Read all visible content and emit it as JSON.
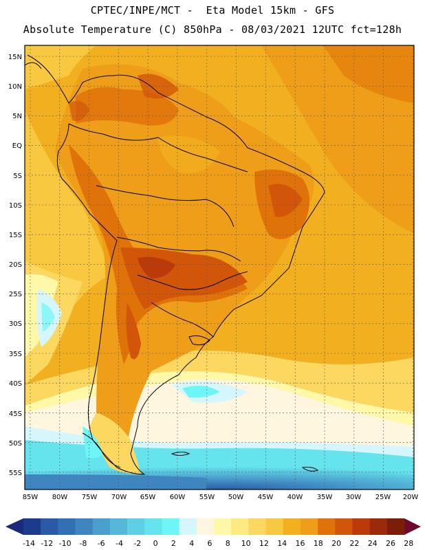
{
  "title_line1": "CPTEC/INPE/MCT -  Eta Model 15km - GFS",
  "title_line2": "Absolute Temperature (C) 850hPa - 08/03/2021 12UTC fct=128h",
  "lat_labels": [
    "15N",
    "10N",
    "5N",
    "EQ",
    "5S",
    "10S",
    "15S",
    "20S",
    "25S",
    "30S",
    "35S",
    "40S",
    "45S",
    "50S",
    "55S"
  ],
  "lon_labels": [
    "85W",
    "80W",
    "75W",
    "70W",
    "65W",
    "60W",
    "55W",
    "50W",
    "45W",
    "40W",
    "35W",
    "30W",
    "25W",
    "20W"
  ],
  "legend": {
    "labels": [
      "-14",
      "-12",
      "-10",
      "-8",
      "-6",
      "-4",
      "-2",
      "0",
      "2",
      "4",
      "6",
      "8",
      "10",
      "12",
      "14",
      "16",
      "18",
      "20",
      "22",
      "24",
      "26",
      "28"
    ],
    "colors": [
      "#1a3c8a",
      "#2a5aa6",
      "#3270b4",
      "#3f86c0",
      "#4aa0cc",
      "#55b8d8",
      "#5fd0e4",
      "#66e4ee",
      "#6ef6f6",
      "#d4f6fc",
      "#fff6e0",
      "#fff8a8",
      "#fdea80",
      "#fcd860",
      "#f8c840",
      "#f2b020",
      "#ee9e18",
      "#e0720a",
      "#d2560a",
      "#bc3a0a",
      "#9a2a0a",
      "#7a1e0a"
    ],
    "low_arrow_color": "#1a2a78",
    "high_arrow_color": "#6e0a2a"
  }
}
